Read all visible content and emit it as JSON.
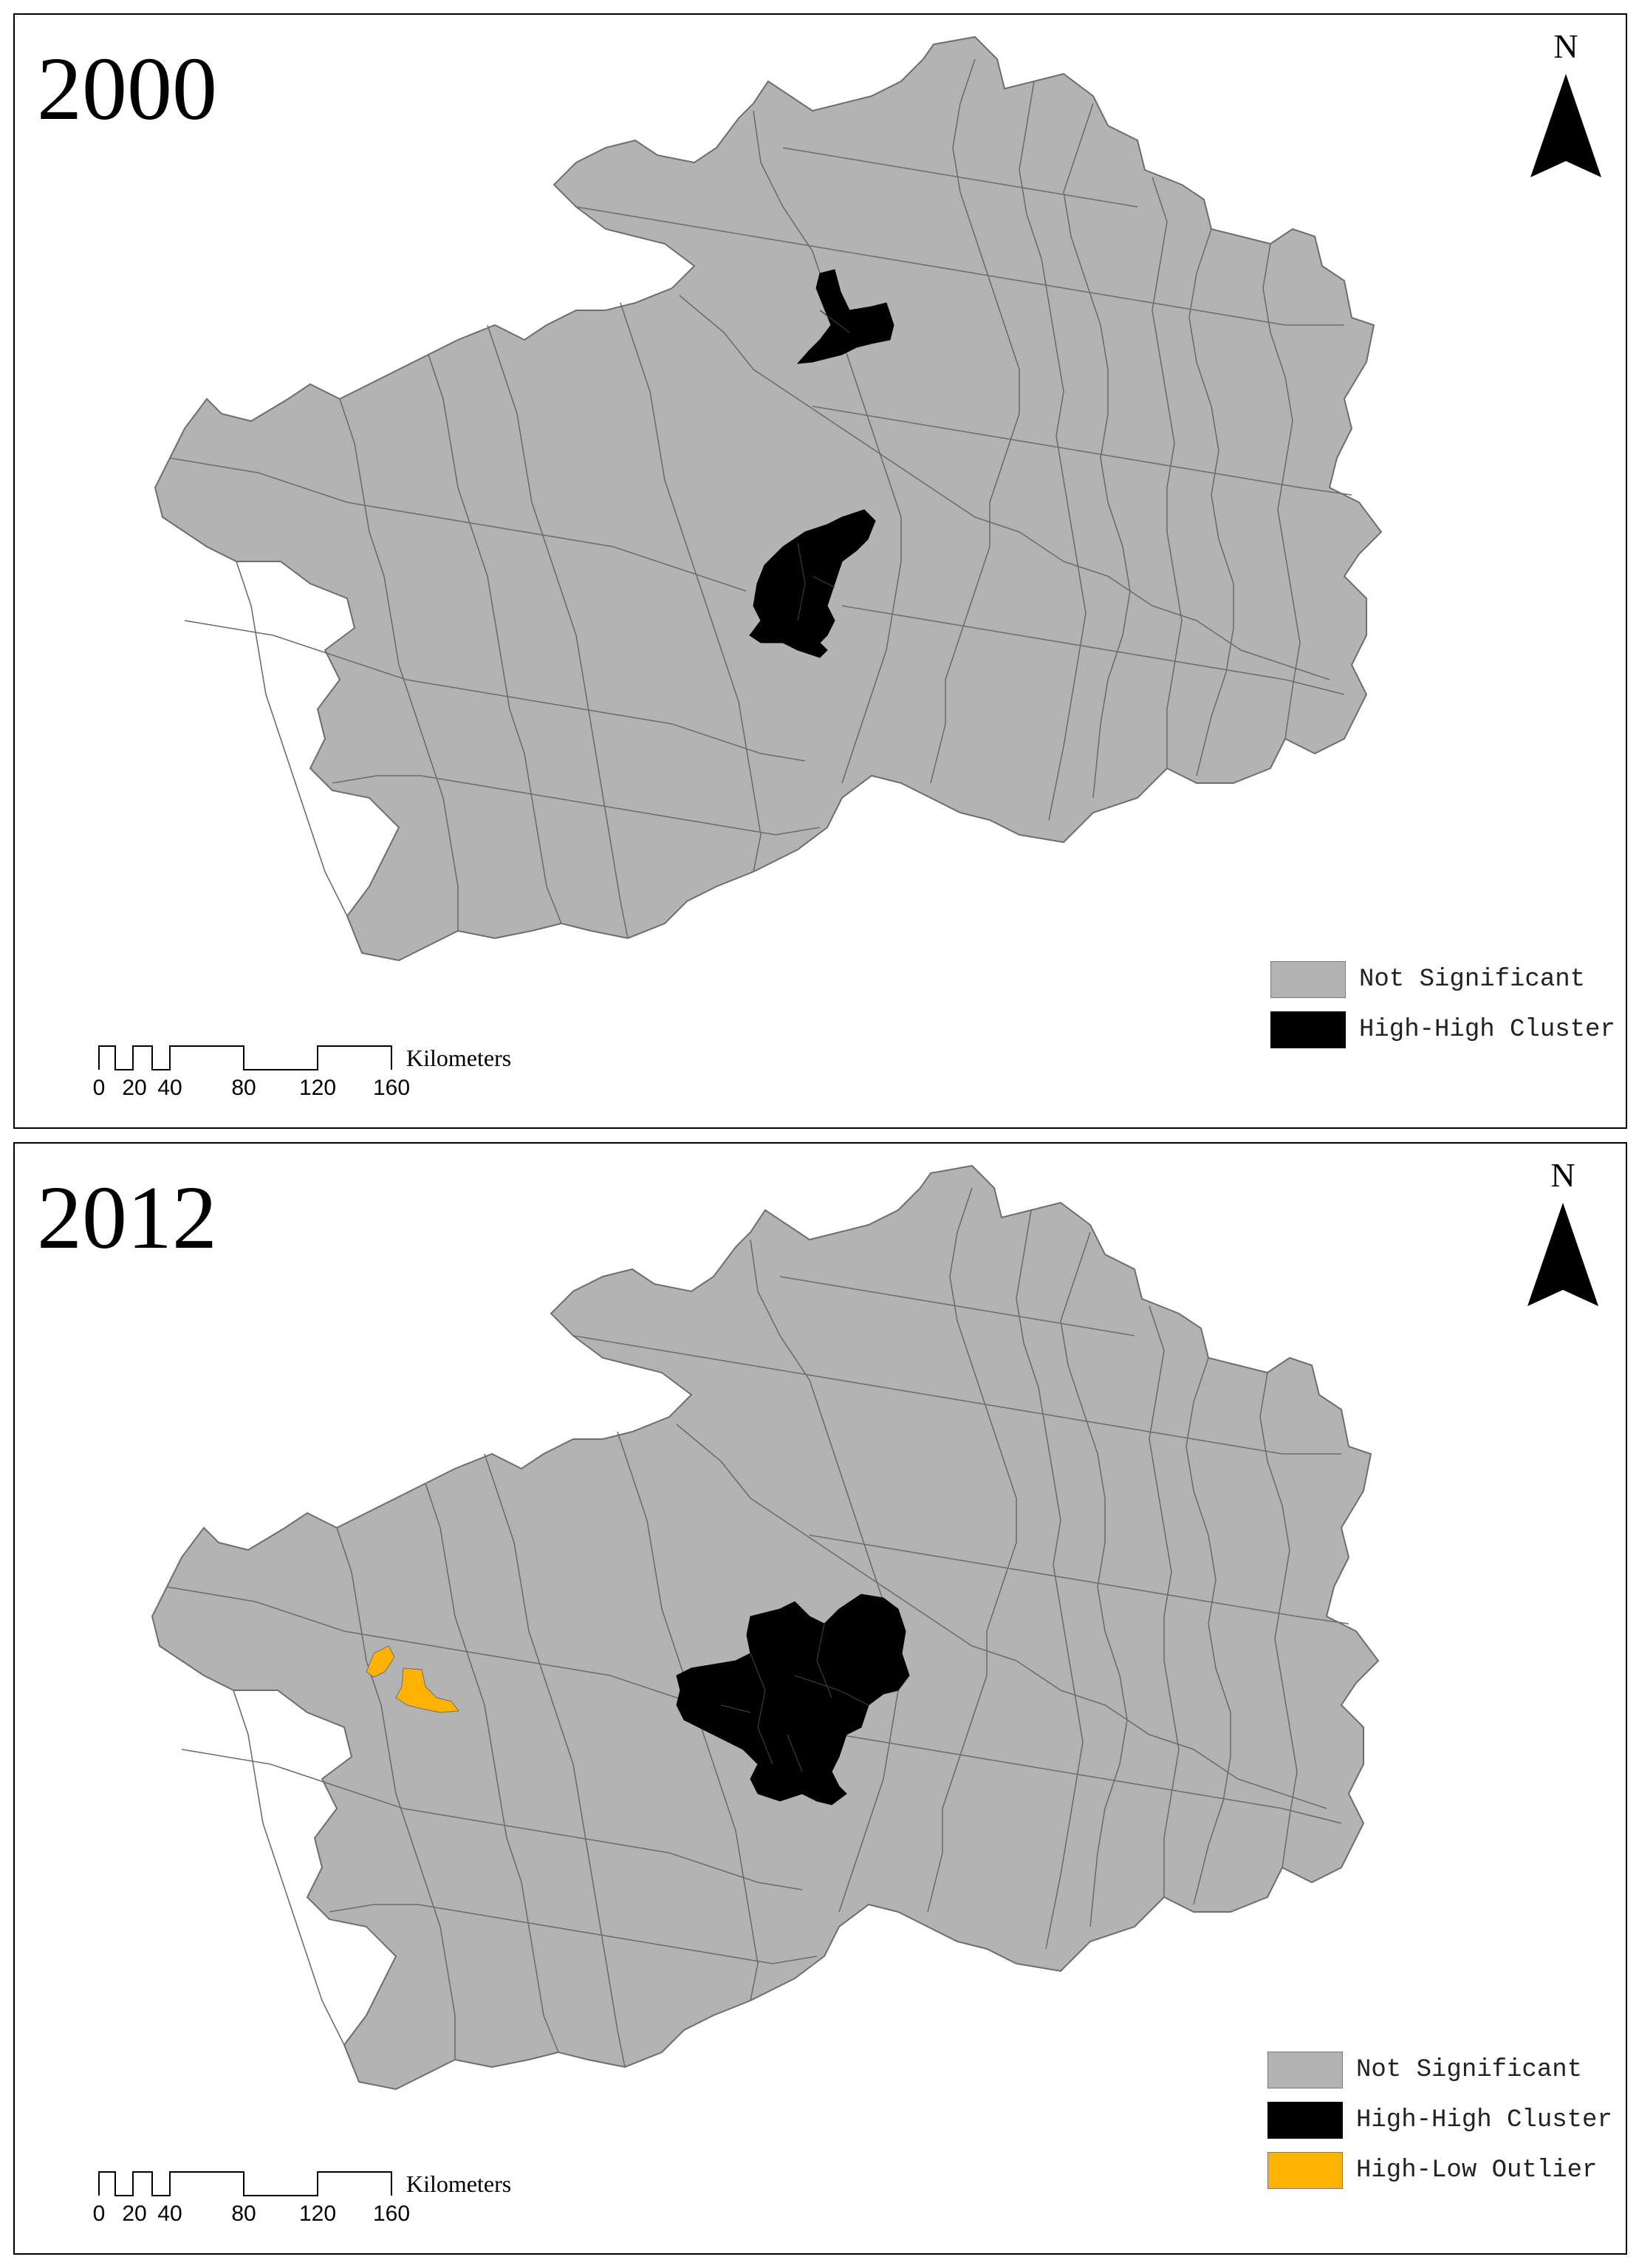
{
  "colors": {
    "not_significant": "#b3b3b3",
    "high_high": "#000000",
    "high_low": "#ffb300",
    "boundary": "#6e6e6e"
  },
  "panels": [
    {
      "year": "2000",
      "north_label": "N",
      "legend": [
        {
          "label": "Not Significant",
          "category": "not_significant"
        },
        {
          "label": "High-High Cluster",
          "category": "high_high"
        }
      ],
      "scale": {
        "ticks": [
          "0",
          "20",
          "40",
          "80",
          "120",
          "160"
        ],
        "unit": "Kilometers"
      }
    },
    {
      "year": "2012",
      "north_label": "N",
      "legend": [
        {
          "label": "Not Significant",
          "category": "not_significant"
        },
        {
          "label": "High-High Cluster",
          "category": "high_high"
        },
        {
          "label": "High-Low Outlier",
          "category": "high_low"
        }
      ],
      "scale": {
        "ticks": [
          "0",
          "20",
          "40",
          "80",
          "120",
          "160"
        ],
        "unit": "Kilometers"
      }
    }
  ]
}
